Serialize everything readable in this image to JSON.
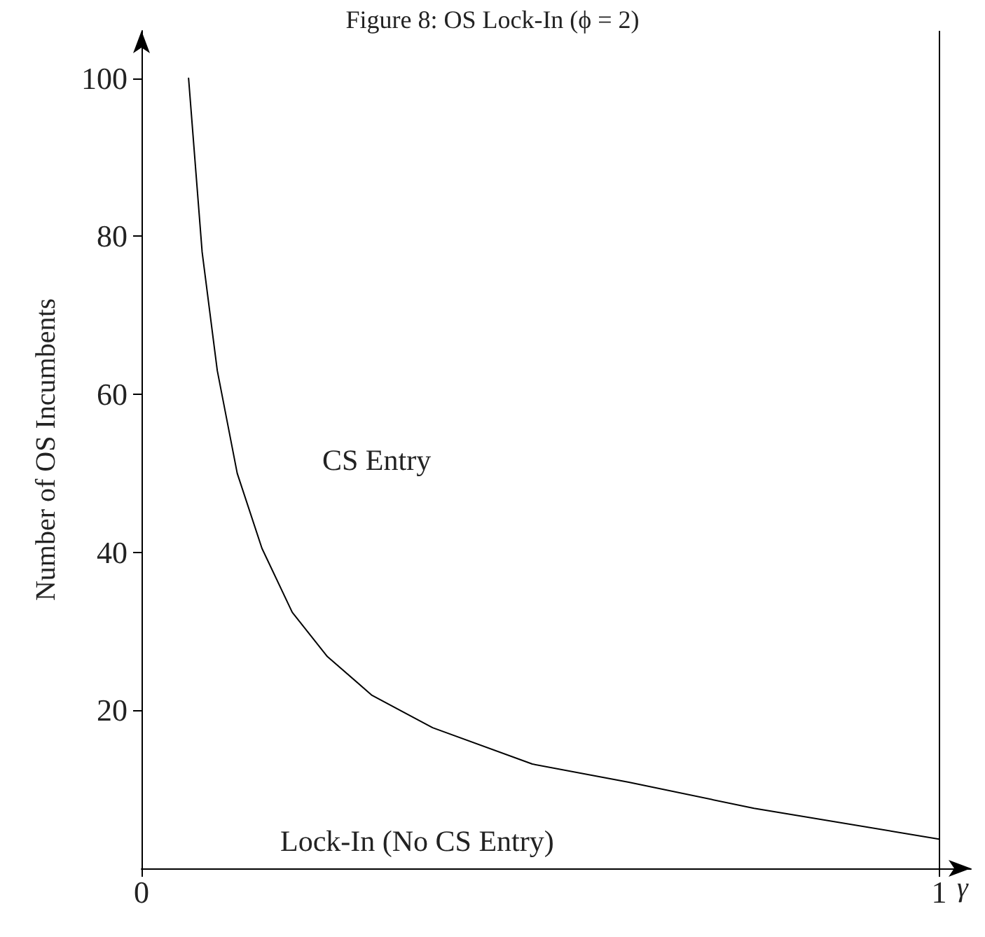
{
  "chart_data": {
    "type": "line",
    "title": "Figure 8: OS Lock-In (ϕ = 2)",
    "xlabel": "γ",
    "ylabel": "Number of OS Incumbents",
    "annotations": [
      "CS Entry",
      "Lock-In (No CS Entry)"
    ],
    "series": [
      {
        "color": "#000000",
        "x": [
          0.059,
          0.076,
          0.095,
          0.12,
          0.151,
          0.189,
          0.233,
          0.289,
          0.365,
          0.49,
          0.611,
          0.768,
          1.0
        ],
        "values": [
          100,
          78,
          63,
          50,
          40.5,
          32.4,
          26.8,
          21.9,
          17.8,
          13.2,
          10.9,
          7.6,
          3.7
        ]
      }
    ],
    "xlim": [
      0,
      1.04
    ],
    "xticks": [
      0,
      1
    ],
    "ylim": [
      0,
      106
    ],
    "yticks": [
      20,
      40,
      60,
      80,
      100
    ],
    "ref_lines": [
      {
        "axis": "x",
        "value": 1,
        "color": "#000000"
      }
    ],
    "grid": false,
    "marker": "none",
    "line_style": "solid"
  }
}
